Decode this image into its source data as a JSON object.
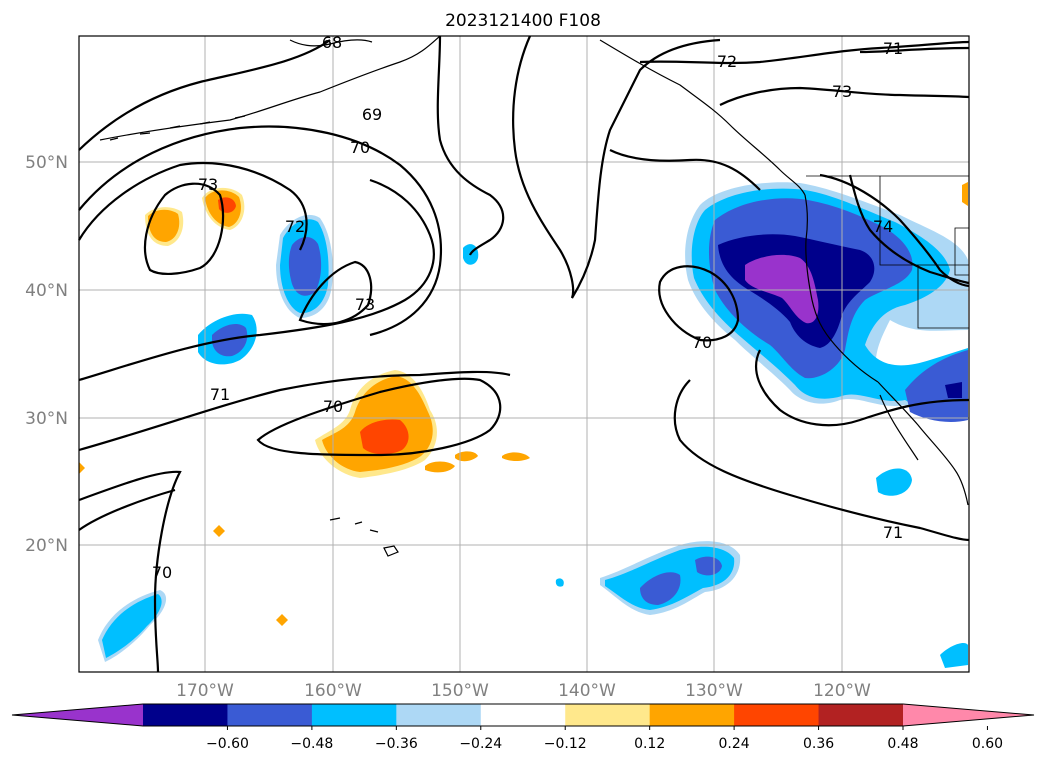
{
  "title": "2023121400 F108",
  "map": {
    "lat_ticks": [
      "50°N",
      "40°N",
      "30°N",
      "20°N"
    ],
    "lon_ticks": [
      "170°W",
      "160°W",
      "150°W",
      "140°W",
      "130°W",
      "120°W"
    ],
    "contour_labels": [
      "68",
      "69",
      "70",
      "71",
      "72",
      "73",
      "74",
      "73",
      "72",
      "73",
      "70",
      "71",
      "70",
      "71",
      "70"
    ],
    "colors": {
      "purple": "#9933cc",
      "navy": "#00008b",
      "blue": "#3a5bd4",
      "deepskyblue": "#00bfff",
      "lightblue": "#add8f5",
      "khaki": "#ffe88c",
      "orange": "#ffa500",
      "orangered": "#ff4500",
      "firebrick": "#b22222",
      "pink": "#ff88aa"
    }
  },
  "colorbar": {
    "tick_labels": [
      "−0.60",
      "−0.48",
      "−0.36",
      "−0.24",
      "−0.12",
      "0.12",
      "0.24",
      "0.36",
      "0.48",
      "0.60"
    ],
    "segments": [
      "#9933cc",
      "#00008b",
      "#3a5bd4",
      "#00bfff",
      "#add8f5",
      "#ffffff",
      "#ffe88c",
      "#ffa500",
      "#ff4500",
      "#b22222",
      "#ff88aa"
    ]
  }
}
